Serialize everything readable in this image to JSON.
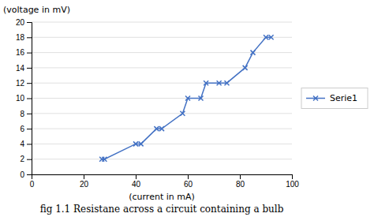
{
  "chart_data": {
    "type": "line",
    "title": "fig 1.1 Resistane across a circuit containing a bulb",
    "xlabel": "(current in mA)",
    "ylabel": "(voltage in mV)",
    "x": [
      27,
      28,
      40,
      42,
      48,
      50,
      58,
      60,
      65,
      67,
      72,
      75,
      82,
      85,
      90,
      92
    ],
    "series": [
      {
        "name": "Serie1",
        "color": "#4472C4",
        "marker": "x",
        "values": [
          2,
          2,
          4,
          4,
          6,
          6,
          8,
          10,
          10,
          12,
          12,
          12,
          14,
          16,
          18,
          18
        ]
      }
    ],
    "xlim": [
      0,
      100
    ],
    "ylim": [
      0,
      20
    ],
    "xticks": [
      0,
      20,
      40,
      60,
      80,
      100
    ],
    "yticks": [
      0,
      2,
      4,
      6,
      8,
      10,
      12,
      14,
      16,
      18,
      20
    ],
    "grid": "y",
    "legend": "right"
  }
}
